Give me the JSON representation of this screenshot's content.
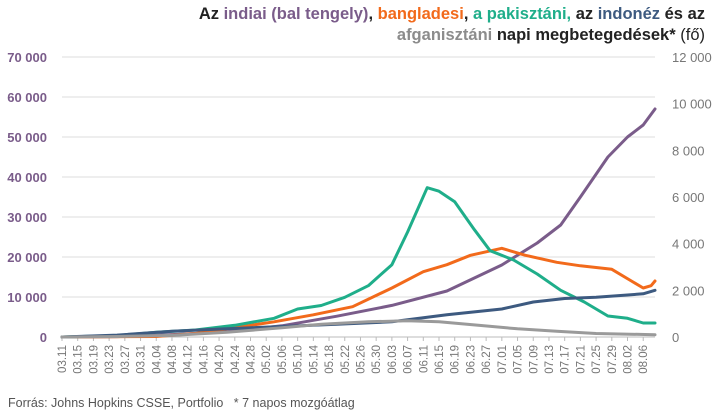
{
  "title": {
    "p1": "Az ",
    "india": "indiai (bal tengely)",
    "p2": ", ",
    "bangla": "bangladesi",
    "p3": ", ",
    "pak": "a pakisztáni,",
    "p4": " az ",
    "indo": "indonéz",
    "p5": " és az",
    "afg": "afganisztáni",
    "p6": " napi megbetegedések* ",
    "unit": "(fő)"
  },
  "source": "Forrás: Johns Hopkins CSSE, Portfolio   * 7 napos mozgóátlag",
  "colors": {
    "india": "#7a5c8a",
    "bangladesh": "#f26a1b",
    "pakistan": "#1fae8a",
    "indonesia": "#3d5a80",
    "afghanistan": "#9a9a9a",
    "axis_text": "#7a5c8a",
    "right_axis_text": "#777777",
    "grid": "#dddddd"
  },
  "chart_data": {
    "type": "line",
    "title": "Az indiai (bal tengely), bangladesi, a pakisztáni, az indonéz és az afganisztáni napi megbetegedések* (fő)",
    "x_tick_labels": [
      "03.11",
      "03.15",
      "03.19",
      "03.23",
      "03.27",
      "03.31",
      "04.04",
      "04.08",
      "04.12",
      "04.16",
      "04.20",
      "04.24",
      "04.28",
      "05.02",
      "05.06",
      "05.10",
      "05.14",
      "05.18",
      "05.22",
      "05.26",
      "05.30",
      "06.03",
      "06.07",
      "06.11",
      "06.15",
      "06.19",
      "06.23",
      "06.27",
      "07.01",
      "07.05",
      "07.09",
      "07.13",
      "07.17",
      "07.21",
      "07.25",
      "07.29",
      "08.02",
      "08.06"
    ],
    "x_range": [
      "03.11",
      "08.09"
    ],
    "y_left": {
      "min": 0,
      "max": 70000,
      "ticks": [
        0,
        10000,
        20000,
        30000,
        40000,
        50000,
        60000,
        70000
      ],
      "tick_labels": [
        "0",
        "10 000",
        "20 000",
        "30 000",
        "40 000",
        "50 000",
        "60 000",
        "70 000"
      ]
    },
    "y_right": {
      "min": 0,
      "max": 12000,
      "ticks": [
        0,
        2000,
        4000,
        6000,
        8000,
        10000,
        12000
      ],
      "tick_labels": [
        "0",
        "2 000",
        "4 000",
        "6 000",
        "8 000",
        "10 000",
        "12 000"
      ]
    },
    "grid": true,
    "legend": "none",
    "series": [
      {
        "key": "india",
        "axis": "left",
        "points": [
          [
            "03.11",
            0
          ],
          [
            "03.25",
            100
          ],
          [
            "04.08",
            600
          ],
          [
            "04.22",
            1300
          ],
          [
            "05.06",
            2800
          ],
          [
            "05.20",
            5200
          ],
          [
            "06.03",
            7900
          ],
          [
            "06.17",
            11500
          ],
          [
            "07.01",
            18000
          ],
          [
            "07.10",
            23500
          ],
          [
            "07.16",
            28000
          ],
          [
            "07.21",
            35000
          ],
          [
            "07.28",
            45000
          ],
          [
            "08.02",
            50000
          ],
          [
            "08.06",
            53000
          ],
          [
            "08.09",
            57000
          ]
        ]
      },
      {
        "key": "bangladesh",
        "axis": "right",
        "points": [
          [
            "03.11",
            0
          ],
          [
            "04.04",
            20
          ],
          [
            "04.14",
            150
          ],
          [
            "04.24",
            400
          ],
          [
            "05.04",
            650
          ],
          [
            "05.14",
            950
          ],
          [
            "05.24",
            1300
          ],
          [
            "06.03",
            2100
          ],
          [
            "06.11",
            2800
          ],
          [
            "06.17",
            3100
          ],
          [
            "06.23",
            3500
          ],
          [
            "07.01",
            3800
          ],
          [
            "07.07",
            3500
          ],
          [
            "07.15",
            3200
          ],
          [
            "07.21",
            3050
          ],
          [
            "07.29",
            2900
          ],
          [
            "08.03",
            2400
          ],
          [
            "08.06",
            2100
          ],
          [
            "08.08",
            2200
          ],
          [
            "08.09",
            2400
          ]
        ]
      },
      {
        "key": "pakistan",
        "axis": "right",
        "points": [
          [
            "03.11",
            0
          ],
          [
            "03.25",
            60
          ],
          [
            "04.04",
            200
          ],
          [
            "04.14",
            300
          ],
          [
            "04.24",
            500
          ],
          [
            "05.04",
            800
          ],
          [
            "05.10",
            1200
          ],
          [
            "05.16",
            1350
          ],
          [
            "05.22",
            1700
          ],
          [
            "05.28",
            2200
          ],
          [
            "06.03",
            3100
          ],
          [
            "06.07",
            4500
          ],
          [
            "06.12",
            6400
          ],
          [
            "06.15",
            6250
          ],
          [
            "06.19",
            5800
          ],
          [
            "06.24",
            4600
          ],
          [
            "06.28",
            3700
          ],
          [
            "07.04",
            3300
          ],
          [
            "07.10",
            2700
          ],
          [
            "07.16",
            2000
          ],
          [
            "07.22",
            1500
          ],
          [
            "07.28",
            900
          ],
          [
            "08.02",
            800
          ],
          [
            "08.06",
            600
          ],
          [
            "08.09",
            600
          ]
        ]
      },
      {
        "key": "indonesia",
        "axis": "right",
        "points": [
          [
            "03.11",
            0
          ],
          [
            "03.25",
            80
          ],
          [
            "04.08",
            250
          ],
          [
            "04.22",
            350
          ],
          [
            "05.06",
            450
          ],
          [
            "05.20",
            550
          ],
          [
            "06.03",
            650
          ],
          [
            "06.17",
            950
          ],
          [
            "07.01",
            1200
          ],
          [
            "07.09",
            1500
          ],
          [
            "07.17",
            1650
          ],
          [
            "07.25",
            1700
          ],
          [
            "08.02",
            1800
          ],
          [
            "08.06",
            1850
          ],
          [
            "08.09",
            2000
          ]
        ]
      },
      {
        "key": "afghanistan",
        "axis": "right",
        "points": [
          [
            "03.11",
            0
          ],
          [
            "03.25",
            20
          ],
          [
            "04.08",
            70
          ],
          [
            "04.22",
            200
          ],
          [
            "05.06",
            400
          ],
          [
            "05.16",
            550
          ],
          [
            "05.28",
            650
          ],
          [
            "06.07",
            700
          ],
          [
            "06.15",
            650
          ],
          [
            "06.25",
            500
          ],
          [
            "07.05",
            350
          ],
          [
            "07.15",
            250
          ],
          [
            "07.25",
            150
          ],
          [
            "08.09",
            100
          ]
        ]
      }
    ]
  }
}
